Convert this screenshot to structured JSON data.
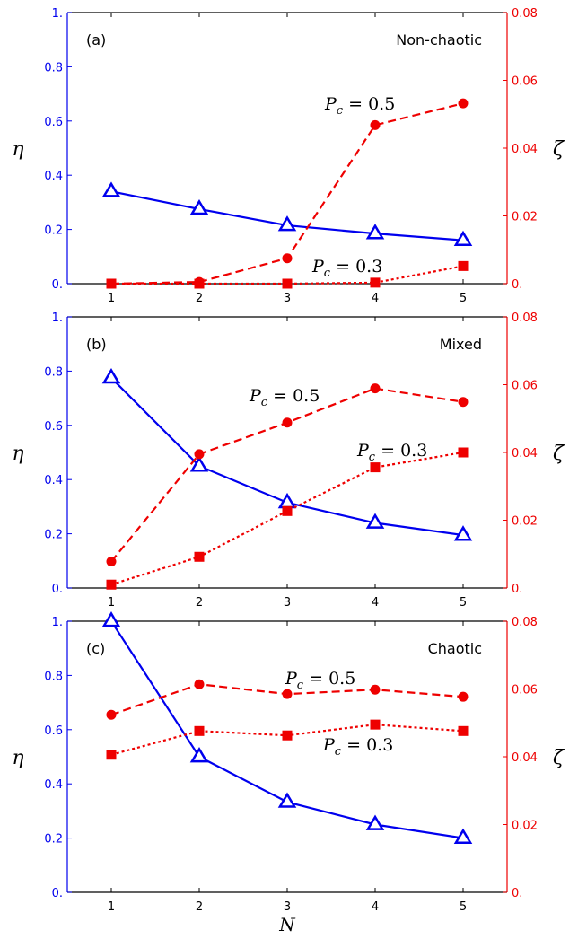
{
  "colors": {
    "eta": "#0000ee",
    "zeta": "#ee0000",
    "axis": "#000000"
  },
  "chart_data": [
    {
      "type": "line",
      "panel_label": "(a)",
      "regime": "Non-chaotic",
      "x": [
        1,
        2,
        3,
        4,
        5
      ],
      "xlim": [
        0.5,
        5.5
      ],
      "xticks": [
        "1",
        "2",
        "3",
        "4",
        "5"
      ],
      "ylabel_left": "η",
      "ylabel_right": "ζ",
      "ylim_left": [
        0,
        1
      ],
      "ylim_right": [
        0,
        0.08
      ],
      "yticks_left": [
        "0.",
        "0.2",
        "0.4",
        "0.6",
        "0.8",
        "1."
      ],
      "yticks_right": [
        "0.",
        "0.02",
        "0.04",
        "0.06",
        "0.08"
      ],
      "series": [
        {
          "axis": "left",
          "marker": "triangle",
          "style": "solid",
          "values": [
            0.34,
            0.275,
            0.215,
            0.185,
            0.16
          ]
        },
        {
          "name": "P_c = 0.5",
          "label_text": "P",
          "label_sub": "c",
          "label_rest": " = 0.5",
          "axis": "right",
          "marker": "circle",
          "style": "dashed",
          "values": [
            0.0,
            0.0005,
            0.0075,
            0.0468,
            0.0532
          ]
        },
        {
          "name": "P_c = 0.3",
          "label_text": "P",
          "label_sub": "c",
          "label_rest": " = 0.3",
          "axis": "right",
          "marker": "square",
          "style": "dotted",
          "values": [
            0.0,
            0.0,
            0.0,
            0.0003,
            0.0052
          ]
        }
      ]
    },
    {
      "type": "line",
      "panel_label": "(b)",
      "regime": "Mixed",
      "x": [
        1,
        2,
        3,
        4,
        5
      ],
      "xlim": [
        0.5,
        5.5
      ],
      "xticks": [
        "1",
        "2",
        "3",
        "4",
        "5"
      ],
      "ylabel_left": "η",
      "ylabel_right": "ζ",
      "ylim_left": [
        0,
        1
      ],
      "ylim_right": [
        0,
        0.08
      ],
      "yticks_left": [
        "0.",
        "0.2",
        "0.4",
        "0.6",
        "0.8",
        "1."
      ],
      "yticks_right": [
        "0.",
        "0.02",
        "0.04",
        "0.06",
        "0.08"
      ],
      "series": [
        {
          "axis": "left",
          "marker": "triangle",
          "style": "solid",
          "values": [
            0.775,
            0.45,
            0.315,
            0.24,
            0.195
          ]
        },
        {
          "name": "P_c = 0.5",
          "label_text": "P",
          "label_sub": "c",
          "label_rest": " = 0.5",
          "axis": "right",
          "marker": "circle",
          "style": "dashed",
          "values": [
            0.0078,
            0.0395,
            0.0488,
            0.0589,
            0.0549
          ]
        },
        {
          "name": "P_c = 0.3",
          "label_text": "P",
          "label_sub": "c",
          "label_rest": " = 0.3",
          "axis": "right",
          "marker": "square",
          "style": "dotted",
          "values": [
            0.001,
            0.0092,
            0.0227,
            0.0356,
            0.04
          ]
        }
      ]
    },
    {
      "type": "line",
      "panel_label": "(c)",
      "regime": "Chaotic",
      "x": [
        1,
        2,
        3,
        4,
        5
      ],
      "xlim": [
        0.5,
        5.5
      ],
      "xticks": [
        "1",
        "2",
        "3",
        "4",
        "5"
      ],
      "xlabel": "N",
      "ylabel_left": "η",
      "ylabel_right": "ζ",
      "ylim_left": [
        0,
        1
      ],
      "ylim_right": [
        0,
        0.08
      ],
      "yticks_left": [
        "0.",
        "0.2",
        "0.4",
        "0.6",
        "0.8",
        "1."
      ],
      "yticks_right": [
        "0.",
        "0.02",
        "0.04",
        "0.06",
        "0.08"
      ],
      "series": [
        {
          "axis": "left",
          "marker": "triangle",
          "style": "solid",
          "values": [
            1.0,
            0.5,
            0.333,
            0.25,
            0.2
          ]
        },
        {
          "name": "P_c = 0.5",
          "label_text": "P",
          "label_sub": "c",
          "label_rest": " = 0.5",
          "axis": "right",
          "marker": "circle",
          "style": "dashed",
          "values": [
            0.0524,
            0.0614,
            0.0585,
            0.0598,
            0.0577
          ]
        },
        {
          "name": "P_c = 0.3",
          "label_text": "P",
          "label_sub": "c",
          "label_rest": " = 0.3",
          "axis": "right",
          "marker": "square",
          "style": "dotted",
          "values": [
            0.0406,
            0.0476,
            0.0463,
            0.0495,
            0.0476
          ]
        }
      ]
    }
  ]
}
